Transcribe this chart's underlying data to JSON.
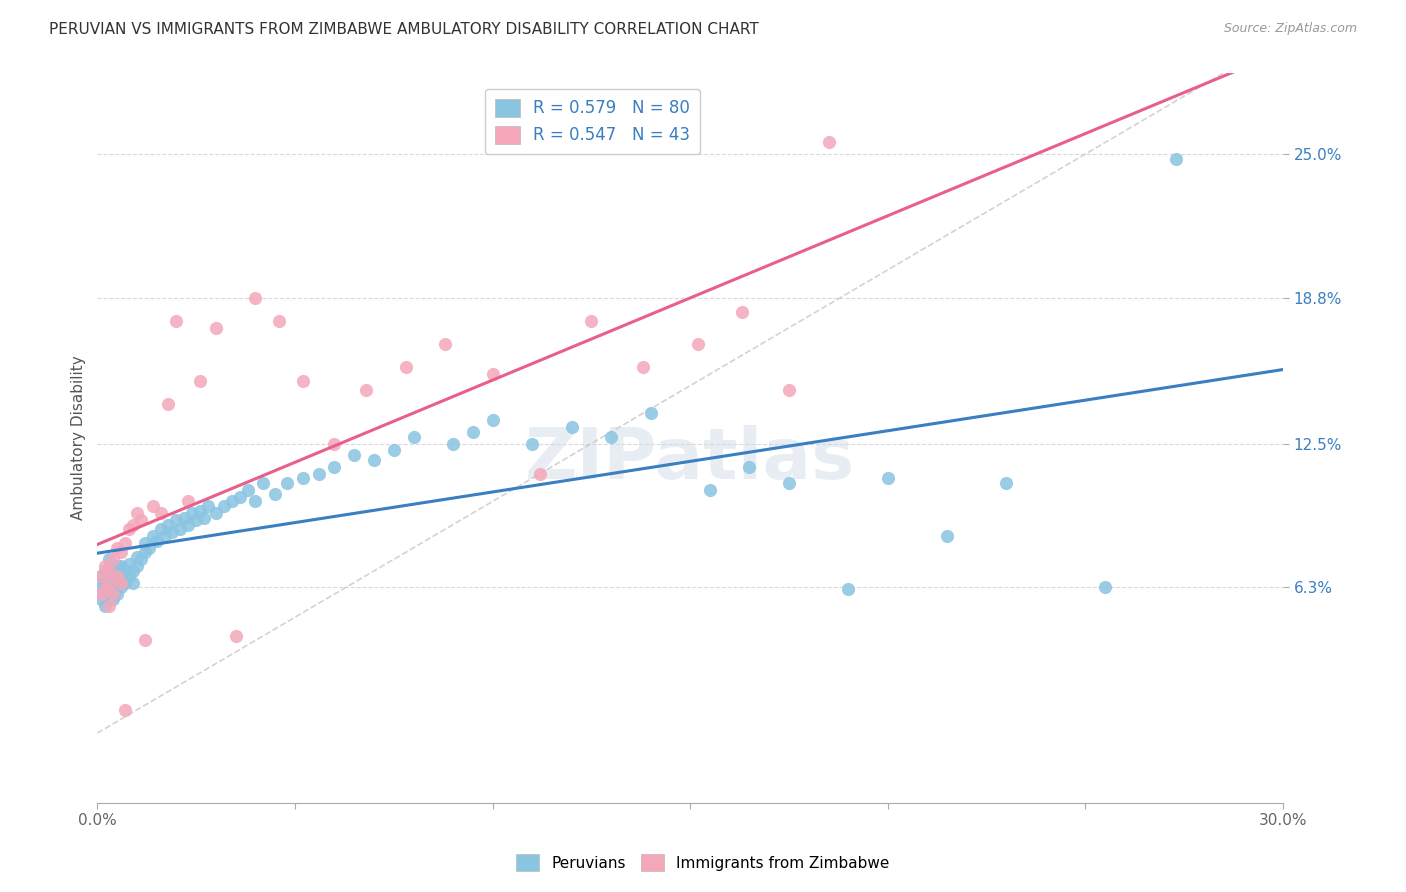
{
  "title": "PERUVIAN VS IMMIGRANTS FROM ZIMBABWE AMBULATORY DISABILITY CORRELATION CHART",
  "source": "Source: ZipAtlas.com",
  "ylabel": "Ambulatory Disability",
  "ytick_labels": [
    "6.3%",
    "12.5%",
    "18.8%",
    "25.0%"
  ],
  "ytick_values": [
    0.063,
    0.125,
    0.188,
    0.25
  ],
  "xlim": [
    0.0,
    0.3
  ],
  "ylim": [
    -0.03,
    0.285
  ],
  "legend_blue_label": "R = 0.579   N = 80",
  "legend_pink_label": "R = 0.547   N = 43",
  "blue_color": "#89c4e1",
  "pink_color": "#f4a7b9",
  "blue_line_color": "#3a7fc1",
  "pink_line_color": "#e8608a",
  "watermark": "ZIPatlas",
  "blue_scatter_x": [
    0.001,
    0.001,
    0.001,
    0.002,
    0.002,
    0.002,
    0.002,
    0.003,
    0.003,
    0.003,
    0.003,
    0.003,
    0.004,
    0.004,
    0.004,
    0.005,
    0.005,
    0.005,
    0.006,
    0.006,
    0.006,
    0.007,
    0.007,
    0.008,
    0.008,
    0.009,
    0.009,
    0.01,
    0.01,
    0.011,
    0.012,
    0.012,
    0.013,
    0.014,
    0.015,
    0.016,
    0.017,
    0.018,
    0.019,
    0.02,
    0.021,
    0.022,
    0.023,
    0.024,
    0.025,
    0.026,
    0.027,
    0.028,
    0.03,
    0.032,
    0.034,
    0.036,
    0.038,
    0.04,
    0.042,
    0.045,
    0.048,
    0.052,
    0.056,
    0.06,
    0.065,
    0.07,
    0.075,
    0.08,
    0.09,
    0.095,
    0.1,
    0.11,
    0.12,
    0.13,
    0.14,
    0.155,
    0.165,
    0.175,
    0.19,
    0.2,
    0.215,
    0.23,
    0.255,
    0.273
  ],
  "blue_scatter_y": [
    0.058,
    0.063,
    0.068,
    0.055,
    0.062,
    0.065,
    0.07,
    0.06,
    0.063,
    0.066,
    0.07,
    0.075,
    0.058,
    0.065,
    0.068,
    0.06,
    0.065,
    0.072,
    0.063,
    0.068,
    0.072,
    0.065,
    0.07,
    0.068,
    0.073,
    0.065,
    0.07,
    0.072,
    0.076,
    0.075,
    0.078,
    0.082,
    0.08,
    0.085,
    0.083,
    0.088,
    0.085,
    0.09,
    0.087,
    0.092,
    0.088,
    0.093,
    0.09,
    0.095,
    0.092,
    0.096,
    0.093,
    0.098,
    0.095,
    0.098,
    0.1,
    0.102,
    0.105,
    0.1,
    0.108,
    0.103,
    0.108,
    0.11,
    0.112,
    0.115,
    0.12,
    0.118,
    0.122,
    0.128,
    0.125,
    0.13,
    0.135,
    0.125,
    0.132,
    0.128,
    0.138,
    0.105,
    0.115,
    0.108,
    0.062,
    0.11,
    0.085,
    0.108,
    0.063,
    0.248
  ],
  "pink_scatter_x": [
    0.001,
    0.001,
    0.002,
    0.002,
    0.003,
    0.003,
    0.003,
    0.004,
    0.004,
    0.005,
    0.005,
    0.006,
    0.006,
    0.007,
    0.007,
    0.008,
    0.009,
    0.01,
    0.011,
    0.012,
    0.014,
    0.016,
    0.018,
    0.02,
    0.023,
    0.026,
    0.03,
    0.035,
    0.04,
    0.046,
    0.052,
    0.06,
    0.068,
    0.078,
    0.088,
    0.1,
    0.112,
    0.125,
    0.138,
    0.152,
    0.163,
    0.175,
    0.185
  ],
  "pink_scatter_y": [
    0.06,
    0.068,
    0.062,
    0.072,
    0.055,
    0.065,
    0.07,
    0.06,
    0.075,
    0.068,
    0.08,
    0.065,
    0.078,
    0.082,
    0.01,
    0.088,
    0.09,
    0.095,
    0.092,
    0.04,
    0.098,
    0.095,
    0.142,
    0.178,
    0.1,
    0.152,
    0.175,
    0.042,
    0.188,
    0.178,
    0.152,
    0.125,
    0.148,
    0.158,
    0.168,
    0.155,
    0.112,
    0.178,
    0.158,
    0.168,
    0.182,
    0.148,
    0.255
  ]
}
